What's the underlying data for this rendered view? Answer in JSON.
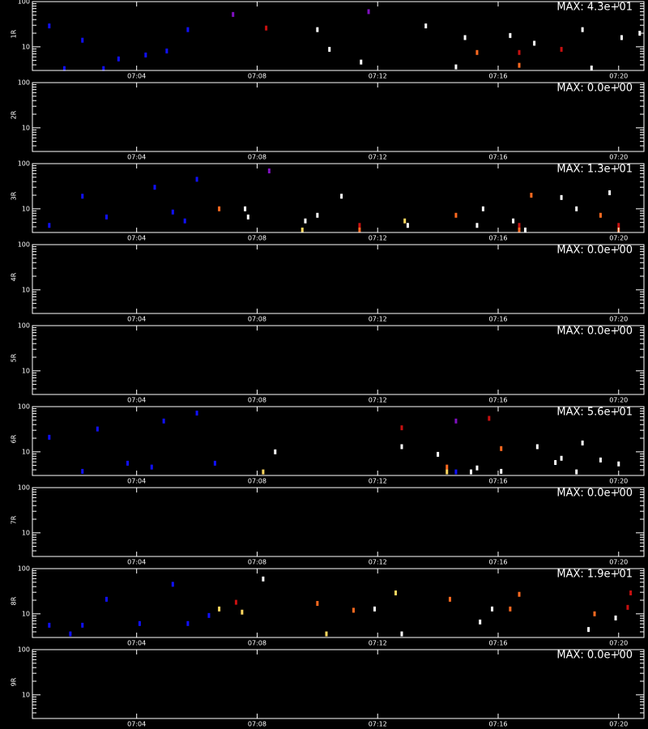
{
  "chart_data": [
    {
      "type": "spectrogram",
      "ylabel": "1R",
      "annotation": "MAX: 4.3e+01",
      "log_y": true,
      "xlim": [
        0.54,
        20.84
      ],
      "ylim": [
        3,
        100
      ],
      "xticks": [
        {
          "value": 4,
          "label": "07:04"
        },
        {
          "value": 8,
          "label": "07:08"
        },
        {
          "value": 12,
          "label": "07:12"
        },
        {
          "value": 16,
          "label": "07:16"
        },
        {
          "value": 20,
          "label": "07:20"
        }
      ],
      "yticks": [
        10,
        100
      ],
      "yminorticks": [
        3,
        4,
        5,
        6,
        7,
        8,
        9,
        20,
        30,
        40,
        50,
        60,
        70,
        80,
        90
      ],
      "colormap": [
        "#1010ff",
        "#8010c0",
        "#c81010",
        "#ff6a20",
        "#ffd860",
        "#ffffff"
      ],
      "x": [
        10.4,
        11.45,
        14.6,
        15.3,
        16.7,
        16.7,
        18.1,
        19.1,
        14.9,
        16.4,
        17.2,
        8.3,
        7.2,
        10.0,
        1.6,
        2.9,
        3.4,
        4.3,
        5.0,
        2.2,
        1.1,
        5.7,
        13.6,
        20.1,
        20.7,
        11.7,
        18.8
      ],
      "y": [
        8.8,
        4.6,
        3.6,
        7.5,
        3.9,
        7.5,
        8.8,
        3.4,
        16,
        17.8,
        12,
        26,
        52,
        24,
        3.3,
        3.3,
        5.4,
        6.6,
        8.1,
        14,
        29,
        24,
        29,
        16,
        20,
        60,
        24
      ],
      "intensity": [
        43,
        40,
        40,
        25,
        22,
        15,
        15,
        40,
        40,
        40,
        38,
        15,
        12,
        38,
        3,
        3,
        3,
        3,
        3,
        3,
        3,
        3,
        38,
        38,
        38,
        12,
        38
      ]
    },
    {
      "type": "spectrogram",
      "ylabel": "2R",
      "annotation": "MAX: 0.0e+00",
      "log_y": true,
      "xlim": [
        0.54,
        20.84
      ],
      "ylim": [
        3,
        100
      ],
      "xticks": [
        {
          "value": 4,
          "label": "07:04"
        },
        {
          "value": 8,
          "label": "07:08"
        },
        {
          "value": 12,
          "label": "07:12"
        },
        {
          "value": 16,
          "label": "07:16"
        },
        {
          "value": 20,
          "label": "07:20"
        }
      ],
      "yticks": [
        10,
        100
      ],
      "yminorticks": [
        3,
        4,
        5,
        6,
        7,
        8,
        9,
        20,
        30,
        40,
        50,
        60,
        70,
        80,
        90
      ]
    },
    {
      "type": "spectrogram",
      "ylabel": "3R",
      "annotation": "MAX: 1.3e+01",
      "log_y": true,
      "xlim": [
        0.54,
        20.84
      ],
      "ylim": [
        3,
        100
      ],
      "xticks": [
        {
          "value": 4,
          "label": "07:04"
        },
        {
          "value": 8,
          "label": "07:08"
        },
        {
          "value": 12,
          "label": "07:12"
        },
        {
          "value": 16,
          "label": "07:16"
        },
        {
          "value": 20,
          "label": "07:20"
        }
      ],
      "yticks": [
        10,
        100
      ],
      "yminorticks": [
        3,
        4,
        5,
        6,
        7,
        8,
        9,
        20,
        30,
        40,
        50,
        60,
        70,
        80,
        90
      ],
      "colormap": [
        "#1010ff",
        "#8010c0",
        "#c81010",
        "#ff6a20",
        "#ffd860",
        "#ffffff"
      ],
      "x": [
        6.74,
        7.6,
        7.7,
        9.5,
        9.6,
        10.0,
        11.4,
        11.4,
        12.9,
        13.0,
        14.6,
        15.3,
        15.5,
        16.5,
        16.7,
        16.7,
        16.9,
        18.6,
        19.4,
        20.0,
        20.0,
        19.7,
        18.1,
        17.1,
        10.8,
        1.1,
        3.0,
        5.2,
        5.6,
        2.2,
        4.6,
        6.0,
        8.4
      ],
      "y": [
        10,
        10,
        6.6,
        3.4,
        5.4,
        7.2,
        4.3,
        3.4,
        5.4,
        4.3,
        7.2,
        4.3,
        10,
        5.4,
        4.3,
        3.4,
        3.4,
        10,
        7.2,
        4.3,
        3.4,
        22.7,
        17.8,
        20,
        19,
        4.3,
        6.6,
        8.5,
        5.4,
        19,
        30,
        45,
        69
      ],
      "intensity": [
        8,
        13,
        12,
        10,
        12,
        12,
        5,
        8,
        10,
        12,
        8,
        12,
        12,
        12,
        5,
        8,
        12,
        12,
        8,
        5,
        8,
        12,
        12,
        8,
        12,
        1,
        1,
        1,
        1,
        1,
        1,
        1,
        4
      ]
    },
    {
      "type": "spectrogram",
      "ylabel": "4R",
      "annotation": "MAX: 0.0e+00",
      "log_y": true,
      "xlim": [
        0.54,
        20.84
      ],
      "ylim": [
        3,
        100
      ],
      "xticks": [
        {
          "value": 4,
          "label": "07:04"
        },
        {
          "value": 8,
          "label": "07:08"
        },
        {
          "value": 12,
          "label": "07:12"
        },
        {
          "value": 16,
          "label": "07:16"
        },
        {
          "value": 20,
          "label": "07:20"
        }
      ],
      "yticks": [
        10,
        100
      ],
      "yminorticks": [
        3,
        4,
        5,
        6,
        7,
        8,
        9,
        20,
        30,
        40,
        50,
        60,
        70,
        80,
        90
      ]
    },
    {
      "type": "spectrogram",
      "ylabel": "5R",
      "annotation": "MAX: 0.0e+00",
      "log_y": true,
      "xlim": [
        0.54,
        20.84
      ],
      "ylim": [
        3,
        100
      ],
      "xticks": [
        {
          "value": 4,
          "label": "07:04"
        },
        {
          "value": 8,
          "label": "07:08"
        },
        {
          "value": 12,
          "label": "07:12"
        },
        {
          "value": 16,
          "label": "07:16"
        },
        {
          "value": 20,
          "label": "07:20"
        }
      ],
      "yticks": [
        10,
        100
      ],
      "yminorticks": [
        3,
        4,
        5,
        6,
        7,
        8,
        9,
        20,
        30,
        40,
        50,
        60,
        70,
        80,
        90
      ]
    },
    {
      "type": "spectrogram",
      "ylabel": "6R",
      "annotation": "MAX: 5.6e+01",
      "log_y": true,
      "xlim": [
        0.54,
        20.84
      ],
      "ylim": [
        3,
        100
      ],
      "xticks": [
        {
          "value": 4,
          "label": "07:04"
        },
        {
          "value": 8,
          "label": "07:08"
        },
        {
          "value": 12,
          "label": "07:12"
        },
        {
          "value": 16,
          "label": "07:16"
        },
        {
          "value": 20,
          "label": "07:20"
        }
      ],
      "yticks": [
        10,
        100
      ],
      "yminorticks": [
        3,
        4,
        5,
        6,
        7,
        8,
        9,
        20,
        30,
        40,
        50,
        60,
        70,
        80,
        90
      ],
      "colormap": [
        "#1010ff",
        "#8010c0",
        "#c81010",
        "#ff6a20",
        "#ffd860",
        "#ffffff"
      ],
      "x": [
        2.2,
        3.7,
        4.5,
        6.6,
        8.2,
        8.6,
        12.8,
        14.0,
        14.3,
        14.3,
        14.6,
        15.1,
        15.3,
        16.1,
        16.1,
        17.3,
        17.9,
        18.1,
        18.6,
        18.8,
        19.4,
        20.0,
        12.8,
        14.6,
        15.7,
        1.1,
        2.7,
        4.9,
        6.0
      ],
      "y": [
        3.7,
        5.6,
        4.6,
        5.6,
        3.6,
        10,
        13,
        8.8,
        4.6,
        3.6,
        3.6,
        3.6,
        4.4,
        11.8,
        3.7,
        13,
        5.8,
        7.2,
        3.6,
        15.7,
        6.6,
        5.4,
        34,
        48,
        55,
        21,
        32,
        48,
        72
      ],
      "intensity": [
        5,
        5,
        5,
        5,
        40,
        50,
        50,
        50,
        30,
        40,
        5,
        56,
        50,
        30,
        50,
        50,
        50,
        50,
        50,
        50,
        50,
        50,
        20,
        12,
        20,
        5,
        5,
        5,
        5
      ]
    },
    {
      "type": "spectrogram",
      "ylabel": "7R",
      "annotation": "MAX: 0.0e+00",
      "log_y": true,
      "xlim": [
        0.54,
        20.84
      ],
      "ylim": [
        3,
        100
      ],
      "xticks": [
        {
          "value": 4,
          "label": "07:04"
        },
        {
          "value": 8,
          "label": "07:08"
        },
        {
          "value": 12,
          "label": "07:12"
        },
        {
          "value": 16,
          "label": "07:16"
        },
        {
          "value": 20,
          "label": "07:20"
        }
      ],
      "yticks": [
        10,
        100
      ],
      "yminorticks": [
        3,
        4,
        5,
        6,
        7,
        8,
        9,
        20,
        30,
        40,
        50,
        60,
        70,
        80,
        90
      ]
    },
    {
      "type": "spectrogram",
      "ylabel": "8R",
      "annotation": "MAX: 1.9e+01",
      "log_y": true,
      "xlim": [
        0.54,
        20.84
      ],
      "ylim": [
        3,
        100
      ],
      "xticks": [
        {
          "value": 4,
          "label": "07:04"
        },
        {
          "value": 8,
          "label": "07:08"
        },
        {
          "value": 12,
          "label": "07:12"
        },
        {
          "value": 16,
          "label": "07:16"
        },
        {
          "value": 20,
          "label": "07:20"
        }
      ],
      "yticks": [
        10,
        100
      ],
      "yminorticks": [
        3,
        4,
        5,
        6,
        7,
        8,
        9,
        20,
        30,
        40,
        50,
        60,
        70,
        80,
        90
      ],
      "colormap": [
        "#1010ff",
        "#8010c0",
        "#c81010",
        "#ff6a20",
        "#ffd860",
        "#ffffff"
      ],
      "x": [
        6.74,
        7.5,
        7.3,
        10.0,
        10.3,
        11.2,
        11.9,
        12.8,
        12.6,
        14.4,
        15.4,
        15.8,
        16.4,
        16.7,
        19.0,
        19.2,
        19.9,
        20.3,
        20.4,
        8.2,
        1.1,
        2.2,
        4.1,
        5.7,
        1.8,
        3.0,
        5.2,
        6.4
      ],
      "y": [
        12.8,
        10.9,
        18,
        17,
        3.6,
        12,
        12.8,
        3.6,
        29,
        21,
        6.6,
        12.8,
        12.8,
        27,
        4.5,
        10,
        8.1,
        13.9,
        29,
        59,
        5.6,
        5.6,
        6.1,
        6.1,
        3.6,
        21,
        45,
        9.2
      ],
      "intensity": [
        14,
        14,
        7,
        11,
        14,
        11,
        19,
        17,
        14,
        11,
        17,
        17,
        11,
        11,
        17,
        11,
        17,
        7,
        7,
        17,
        2,
        2,
        2,
        2,
        2,
        2,
        2,
        2
      ]
    },
    {
      "type": "spectrogram",
      "ylabel": "9R",
      "annotation": "MAX: 0.0e+00",
      "log_y": true,
      "xlim": [
        0.54,
        20.84
      ],
      "ylim": [
        3,
        100
      ],
      "xticks": [
        {
          "value": 4,
          "label": "07:04"
        },
        {
          "value": 8,
          "label": "07:08"
        },
        {
          "value": 12,
          "label": "07:12"
        },
        {
          "value": 16,
          "label": "07:16"
        },
        {
          "value": 20,
          "label": "07:20"
        }
      ],
      "yticks": [
        10,
        100
      ],
      "yminorticks": [
        3,
        4,
        5,
        6,
        7,
        8,
        9,
        20,
        30,
        40,
        50,
        60,
        70,
        80,
        90
      ]
    }
  ]
}
